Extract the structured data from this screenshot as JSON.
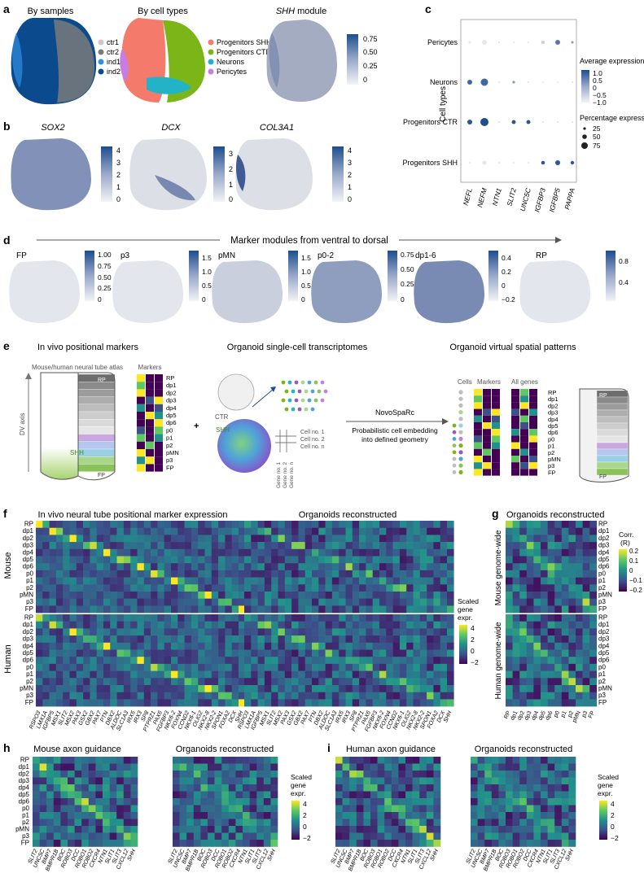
{
  "panels": {
    "a": {
      "letter": "a",
      "titles": [
        "By samples",
        "By cell types",
        "SHH module"
      ],
      "samples_legend": [
        "ctr1",
        "ctr2",
        "ind1",
        "ind2"
      ],
      "celltypes_legend": [
        "Progenitors SHH",
        "Progenitors CTR",
        "Neurons",
        "Pericytes"
      ],
      "colorbar_ticks": [
        "0.75",
        "0.50",
        "0.25",
        "0"
      ]
    },
    "b": {
      "letter": "b",
      "genes": [
        "SOX2",
        "DCX",
        "COL3A1"
      ],
      "cb1": [
        "4",
        "3",
        "2",
        "1",
        "0"
      ],
      "cb2": [
        "3",
        "2",
        "1",
        "0"
      ],
      "cb3": [
        "4",
        "3",
        "2",
        "1",
        "0"
      ]
    },
    "c": {
      "letter": "c",
      "ylabel": "Cell types",
      "rows": [
        "Pericytes",
        "Neurons",
        "Progenitors CTR",
        "Progenitors SHH"
      ],
      "genes": [
        "NEFL",
        "NEFM",
        "NTN1",
        "SLIT2",
        "UNC5C",
        "IGFBP3",
        "IGFBP5",
        "PAPPA"
      ],
      "avg_title": "Average expression",
      "avg_ticks": [
        "1.0",
        "0.5",
        "0",
        "−0.5",
        "−1.0"
      ],
      "pct_title": "Percentage expressed",
      "pct_ticks": [
        "25",
        "50",
        "75"
      ]
    },
    "d": {
      "letter": "d",
      "arrow_label": "Marker modules from ventral to dorsal",
      "modules": [
        "FP",
        "p3",
        "pMN",
        "p0-2",
        "dp1-6",
        "RP"
      ],
      "cb_fp": [
        "1.00",
        "0.75",
        "0.50",
        "0.25",
        "0"
      ],
      "cb_p3": [
        "1.5",
        "1.0",
        "0.5",
        "0"
      ],
      "cb_pmn": [
        "1.5",
        "1.0",
        "0.5",
        "0"
      ],
      "cb_p02": [
        "0.75",
        "0.50",
        "0.25",
        "0"
      ],
      "cb_dp16": [
        "0.4",
        "0.2",
        "0",
        "−0.2"
      ],
      "cb_rp": [
        "0.8",
        "0.4"
      ]
    },
    "e": {
      "letter": "e",
      "title1": "In vivo positional markers",
      "title2": "Organoid single-cell transcriptomes",
      "title3": "Organoid virtual spatial patterns",
      "atlas_label": "Mouse/human neural tube atlas",
      "markers_label": "Markers",
      "dv_axis": "DV axis",
      "shh": "SHH",
      "ctr": "CTR",
      "rp_label": "RP",
      "fp_label": "FP",
      "plus": "+",
      "cell1": "Cell no. 1",
      "cell2": "Cell no. 2",
      "celln": "Cell no. n",
      "gene1": "Gene no. 1",
      "gene2": "Gene no. 2",
      "genen": "Gene no. n",
      "method": "NovoSpaRc",
      "method_desc1": "Probabilistic cell embedding",
      "method_desc2": "into defined geometry",
      "cells_label": "Cells",
      "markers2_label": "Markers",
      "allgenes_label": "All genes",
      "domains": [
        "RP",
        "dp1",
        "dp2",
        "dp3",
        "dp4",
        "dp5",
        "dp6",
        "p0",
        "p1",
        "p2",
        "pMN",
        "p3",
        "FP"
      ]
    },
    "f": {
      "letter": "f",
      "title_left": "In vivo neural tube positional marker expression",
      "title_right": "Organoids reconstructed",
      "row_mouse": "Mouse",
      "row_human": "Human",
      "domains": [
        "RP",
        "dp1",
        "dp2",
        "dp3",
        "dp4",
        "dp5",
        "dp6",
        "p0",
        "p1",
        "p2",
        "pMN",
        "p3",
        "FP"
      ],
      "genes": [
        "RSPO3",
        "LMX1A",
        "IGFBP5",
        "MSX1",
        "SLIT2",
        "MSX2",
        "PAX3",
        "GSX2",
        "GBX2",
        "PAX7",
        "PTN",
        "DBX2",
        "ALDOC",
        "SLC1A3",
        "IRX5",
        "IRX3",
        "SP8",
        "PTPRZ1",
        "PAX6",
        "FGFBP3",
        "NKX6-2",
        "FOXN4",
        "CCND2",
        "NKX6-1",
        "OLIG2",
        "NKX2-8",
        "NKX2-2",
        "SPON1",
        "FOXA2",
        "DCX",
        "SHH"
      ],
      "cb_title1": "Scaled",
      "cb_title2": "gene",
      "cb_title3": "expr.",
      "cb_ticks": [
        "4",
        "2",
        "0",
        "−2"
      ]
    },
    "g": {
      "letter": "g",
      "title": "Organoids reconstructed",
      "row_mouse": "Mouse genome-wide",
      "row_human": "Human genome-wide",
      "domains": [
        "RP",
        "dp1",
        "dp2",
        "dp3",
        "dp4",
        "dp5",
        "dp6",
        "p0",
        "p1",
        "p2",
        "pMN",
        "p3",
        "FP"
      ],
      "cb_title1": "Corr.",
      "cb_title2": "(R)",
      "cb_ticks": [
        "0.2",
        "0.1",
        "0",
        "−0.1",
        "−0.2"
      ]
    },
    "h": {
      "letter": "h",
      "title_left": "Mouse axon guidance",
      "title_right": "Organoids reconstructed",
      "domains": [
        "RP",
        "dp1",
        "dp2",
        "dp3",
        "dp4",
        "dp5",
        "dp6",
        "p0",
        "p1",
        "p2",
        "pMN",
        "p3",
        "FP"
      ],
      "genes_left": [
        "SLIT2",
        "UNC5C",
        "BMP7",
        "BMPR1B",
        "BOC",
        "ROBO3",
        "DCC",
        "ROBO1",
        "ROBO2",
        "CXCR4",
        "NTN1",
        "SLIT1",
        "SLIT3",
        "CXCL12",
        "SHH"
      ],
      "genes_right": [
        "SLIT2",
        "UNC5C",
        "BMP7",
        "BMPR1B",
        "BOC",
        "ROBO3",
        "DCC",
        "ROBO1",
        "ROBO2",
        "CXCR4",
        "NTN1",
        "SLIT1",
        "SLIT3",
        "CXCL12",
        "SHH"
      ],
      "cb_title1": "Scaled",
      "cb_title2": "gene",
      "cb_title3": "expr.",
      "cb_ticks": [
        "4",
        "2",
        "0",
        "−2"
      ]
    },
    "i": {
      "letter": "i",
      "title_left": "Human axon guidance",
      "title_right": "Organoids reconstructed",
      "genes_left": [
        "SLIT2",
        "UNC5C",
        "BMP7",
        "BMPR1B",
        "BOC",
        "ROBO3",
        "ROBO1",
        "ROBO2",
        "DCC",
        "CXCR4",
        "NTN1",
        "SLIT1",
        "SLIT3",
        "CXCL12",
        "SHH"
      ],
      "genes_right": [
        "SLIT2",
        "UNC5C",
        "BMP7",
        "BMPR1B",
        "BOC",
        "ROBO3",
        "ROBO1",
        "ROBO2",
        "DCC",
        "CXCR4",
        "NTN1",
        "SLIT1",
        "SLIT3",
        "CXCL12",
        "SHH"
      ],
      "cb_title1": "Scaled",
      "cb_title2": "gene",
      "cb_title3": "expr.",
      "cb_ticks": [
        "4",
        "2",
        "0",
        "−2"
      ]
    }
  },
  "colors": {
    "ctr1": "#c9c9c9",
    "ctr2": "#7a7a7a",
    "ind1": "#2f8ee0",
    "ind2": "#0b4a8c",
    "prog_shh": "#f47a6b",
    "prog_ctr": "#7cb518",
    "neurons": "#22b3c7",
    "pericytes": "#c77ee0",
    "blue_dark": "#1d4e8f",
    "viridis_hi": "#fde725",
    "viridis_lo": "#440154"
  }
}
